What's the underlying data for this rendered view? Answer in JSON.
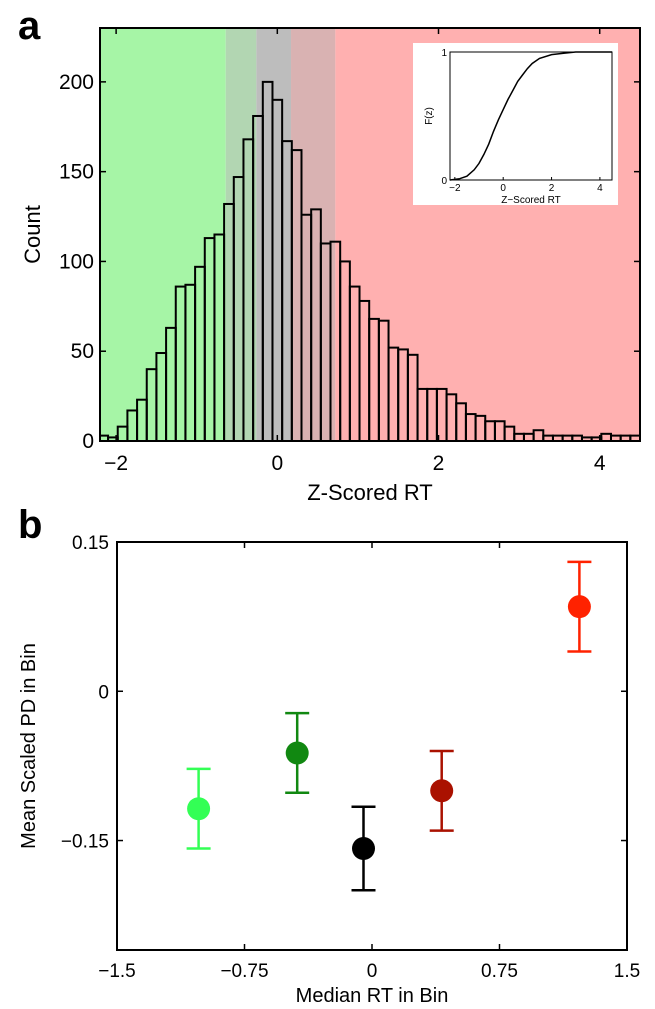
{
  "chart_data": [
    {
      "panel_label": "a",
      "type": "bar",
      "xlabel": "Z-Scored RT",
      "ylabel": "Count",
      "xlim": [
        -2.2,
        4.5
      ],
      "ylim": [
        0,
        230
      ],
      "xticks": [
        -2,
        0,
        2,
        4
      ],
      "yticks": [
        0,
        50,
        100,
        150,
        200
      ],
      "bin_width": 0.12,
      "bin_start": -2.22,
      "counts": [
        3,
        2,
        8,
        17,
        23,
        40,
        49,
        63,
        86,
        87,
        97,
        113,
        115,
        132,
        147,
        168,
        181,
        200,
        190,
        167,
        162,
        126,
        129,
        110,
        111,
        100,
        86,
        78,
        68,
        67,
        52,
        51,
        48,
        29,
        29,
        29,
        26,
        21,
        15,
        14,
        11,
        11,
        8,
        4,
        4,
        6,
        3,
        3,
        3,
        3,
        2,
        2,
        4,
        3,
        3,
        3
      ],
      "shaded_regions": [
        {
          "from": -2.2,
          "to": -0.64,
          "color": "#a6f5a6"
        },
        {
          "from": -0.64,
          "to": -0.26,
          "color": "#b2d6b2"
        },
        {
          "from": -0.26,
          "to": 0.17,
          "color": "#bdbdbd"
        },
        {
          "from": 0.17,
          "to": 0.72,
          "color": "#d9b2b2"
        },
        {
          "from": 0.72,
          "to": 4.5,
          "color": "#ffb0b0"
        }
      ],
      "inset": {
        "type": "line",
        "xlabel": "Z−Scored RT",
        "ylabel": "F(z)",
        "xlim": [
          -2.2,
          4.5
        ],
        "ylim": [
          0,
          1
        ],
        "xticks": [
          -2,
          0,
          2,
          4
        ],
        "yticks": [
          0,
          1
        ],
        "x": [
          -2.2,
          -1.8,
          -1.5,
          -1.2,
          -1.0,
          -0.8,
          -0.6,
          -0.4,
          -0.2,
          0.0,
          0.2,
          0.4,
          0.6,
          0.8,
          1.0,
          1.2,
          1.5,
          2.0,
          2.5,
          3.0,
          4.5
        ],
        "y": [
          0.0,
          0.01,
          0.03,
          0.08,
          0.13,
          0.2,
          0.28,
          0.38,
          0.47,
          0.55,
          0.63,
          0.7,
          0.77,
          0.82,
          0.87,
          0.91,
          0.95,
          0.98,
          0.99,
          1.0,
          1.0
        ]
      }
    },
    {
      "panel_label": "b",
      "type": "scatter",
      "xlabel": "Median RT in Bin",
      "ylabel": "Mean Scaled PD in Bin",
      "xlim": [
        -1.5,
        1.5
      ],
      "ylim": [
        -0.26,
        0.15
      ],
      "xticks": [
        -1.5,
        -0.75,
        0,
        0.75,
        1.5
      ],
      "xtick_labels": [
        "−1.5",
        "−0.75",
        "0",
        "0.75",
        "1.5"
      ],
      "yticks": [
        -0.15,
        0,
        0.15
      ],
      "ytick_labels": [
        "−0.15",
        "0",
        "0.15"
      ],
      "points": [
        {
          "x": -1.02,
          "y": -0.118,
          "err": 0.04,
          "color": "#33ff55"
        },
        {
          "x": -0.44,
          "y": -0.062,
          "err": 0.04,
          "color": "#118811"
        },
        {
          "x": -0.05,
          "y": -0.158,
          "err": 0.042,
          "color": "#000000"
        },
        {
          "x": 0.41,
          "y": -0.1,
          "err": 0.04,
          "color": "#aa1100"
        },
        {
          "x": 1.22,
          "y": 0.085,
          "err": 0.045,
          "color": "#ff2200"
        }
      ]
    }
  ]
}
